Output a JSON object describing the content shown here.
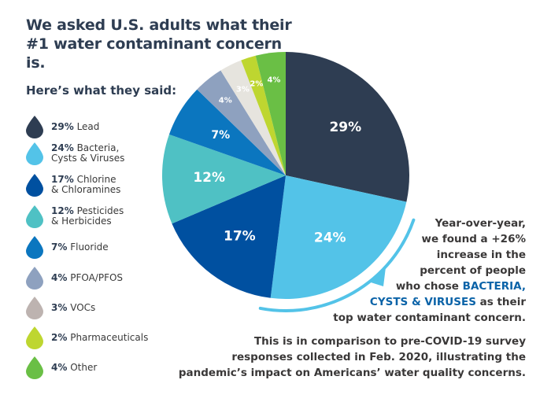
{
  "title": "We asked U.S. adults what their #1 water contaminant concern is.",
  "subtitle": "Here’s what they said:",
  "chart_data": {
    "type": "pie",
    "start": "top",
    "direction": "clockwise",
    "slices": [
      {
        "label": "Lead",
        "label_line2": "",
        "value": 29,
        "display": "29%",
        "color": "#2e3d52",
        "legend_color": "#2e3d52"
      },
      {
        "label": "Bacteria,",
        "label_line2": "Cysts & Viruses",
        "value": 24,
        "display": "24%",
        "color": "#53c3e8",
        "legend_color": "#53c3e8"
      },
      {
        "label": "Chlorine",
        "label_line2": "& Chloramines",
        "value": 17,
        "display": "17%",
        "color": "#0050a0",
        "legend_color": "#0050a0"
      },
      {
        "label": "Pesticides",
        "label_line2": "& Herbicides",
        "value": 12,
        "display": "12%",
        "color": "#4fc1c4",
        "legend_color": "#4fc1c4"
      },
      {
        "label": "Fluoride",
        "label_line2": "",
        "value": 7,
        "display": "7%",
        "color": "#0b76bf",
        "legend_color": "#0b76bf"
      },
      {
        "label": "PFOA/PFOS",
        "label_line2": "",
        "value": 4,
        "display": "4%",
        "color": "#8ea1bf",
        "legend_color": "#8ea1bf"
      },
      {
        "label": "VOCs",
        "label_line2": "",
        "value": 3,
        "display": "3%",
        "color": "#e6e4de",
        "legend_color": "#bdb3b0"
      },
      {
        "label": "Pharmaceuticals",
        "label_line2": "",
        "value": 2,
        "display": "2%",
        "color": "#bed630",
        "legend_color": "#bed630"
      },
      {
        "label": "Other",
        "label_line2": "",
        "value": 4,
        "display": "4%",
        "color": "#6abf45",
        "legend_color": "#6abf45"
      }
    ],
    "highlight_color": "#53c3e8"
  },
  "note": {
    "lines": [
      "Year-over-year,",
      "we  found a +26%",
      "increase in the",
      "percent of people"
    ],
    "line5_pre": "who chose ",
    "line5_hl": "BACTERIA,",
    "line6_hl": "CYSTS & VIRUSES",
    "line6_post": " as their",
    "line7": "top water contaminant concern.",
    "para2": [
      "This is in comparison to pre-COVID-19 survey",
      "responses collected in Feb. 2020, illustrating the",
      "pandemic’s impact on Americans’ water quality concerns."
    ]
  }
}
